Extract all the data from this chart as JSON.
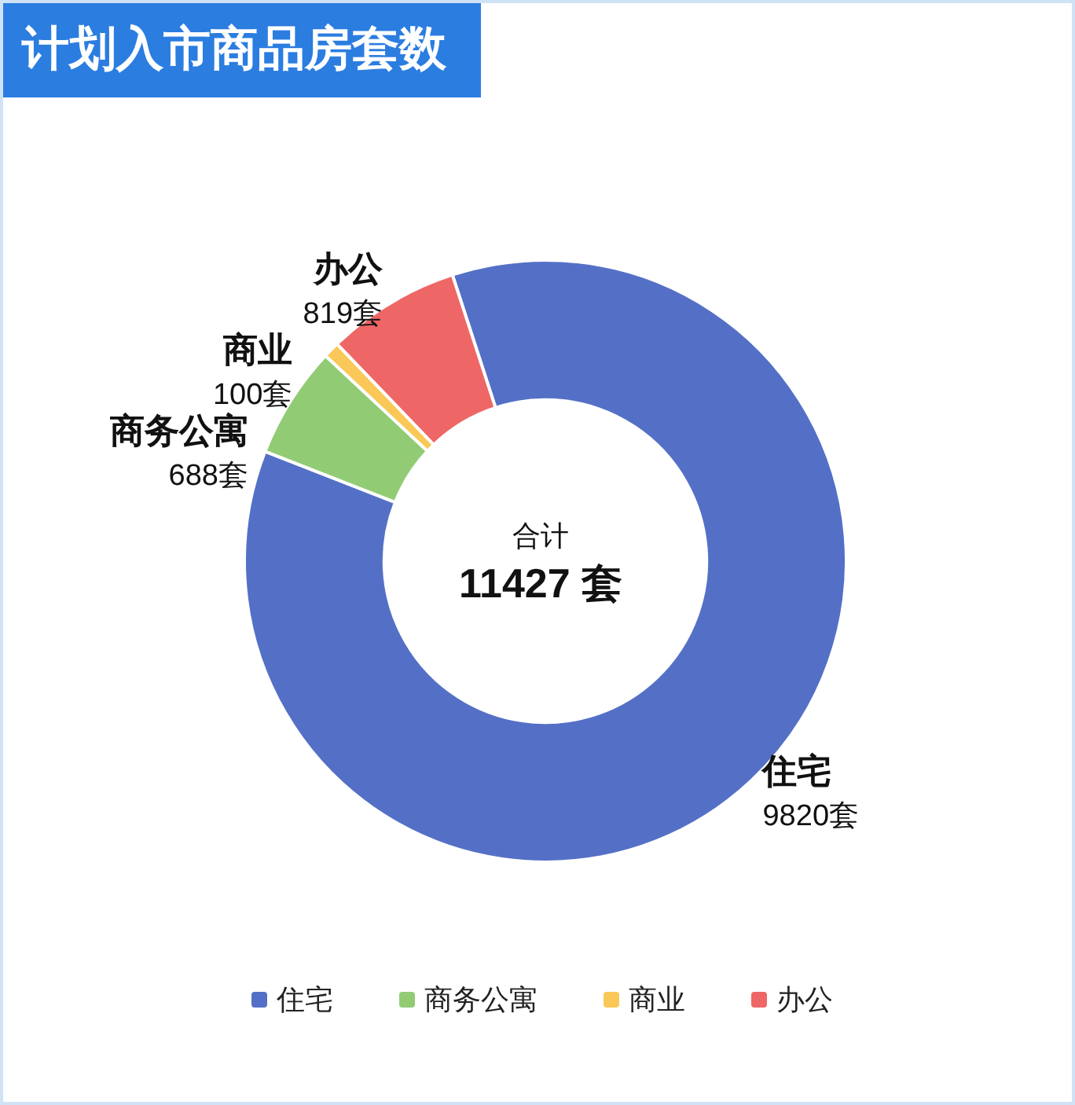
{
  "chart_data": {
    "type": "donut",
    "title": "计划入市商品房套数",
    "categories": [
      "住宅",
      "商务公寓",
      "商业",
      "办公"
    ],
    "values": [
      9820,
      688,
      100,
      819
    ],
    "colors": [
      "#5470c6",
      "#91cc75",
      "#fac858",
      "#ee6666"
    ],
    "value_labels": [
      "9820套",
      "688套",
      "100套",
      "819套"
    ],
    "annotations": [
      "合计",
      "11427 套"
    ],
    "legend": "bottom"
  }
}
